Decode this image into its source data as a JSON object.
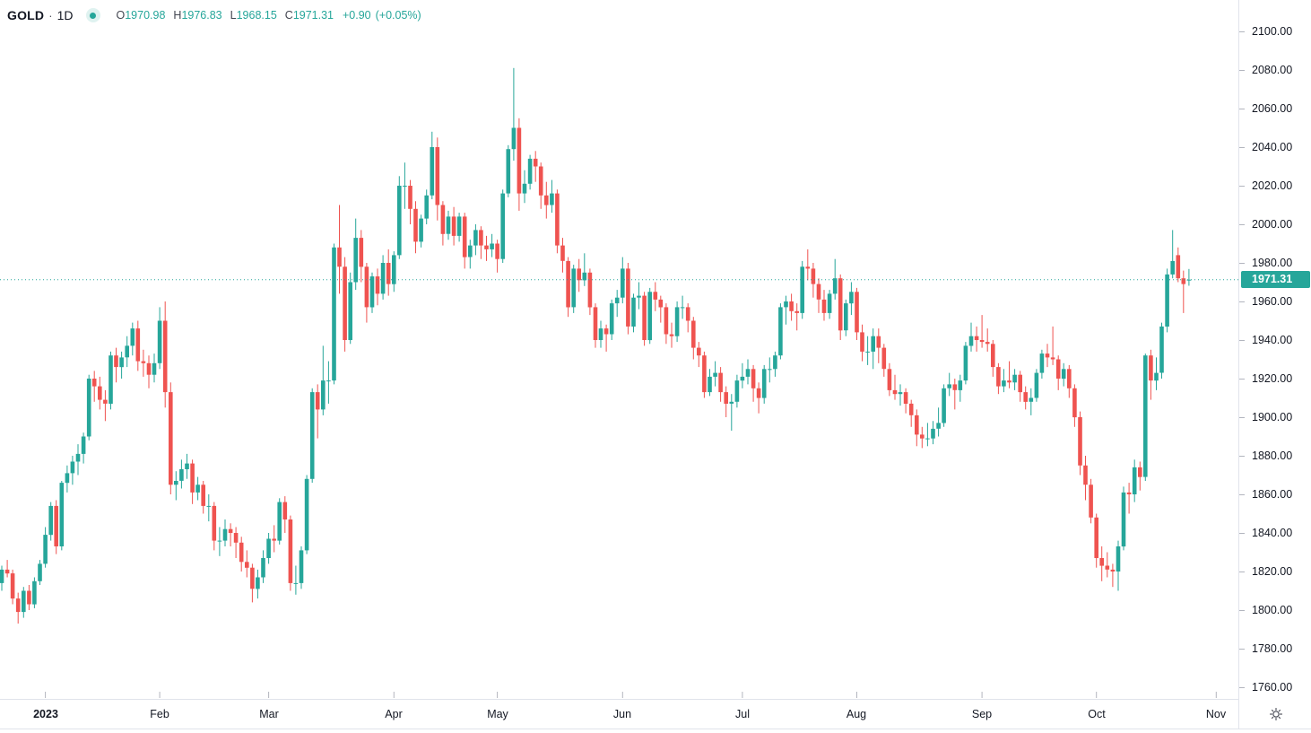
{
  "header": {
    "symbol": "GOLD",
    "separator": "·",
    "timeframe": "1D",
    "ohlc": {
      "o_label": "O",
      "o": "1970.98",
      "h_label": "H",
      "h": "1976.83",
      "l_label": "L",
      "l": "1968.15",
      "c_label": "C",
      "c": "1971.31",
      "change": "+0.90",
      "change_pct": "(+0.05%)"
    }
  },
  "colors": {
    "up": "#26a69a",
    "down": "#ef5350",
    "last_price_line": "#26a69a",
    "axis_text": "#131722",
    "border": "#e0e3eb",
    "tick": "#b2b5be"
  },
  "price_axis": {
    "ticks": [
      "2100.00",
      "2080.00",
      "2060.00",
      "2040.00",
      "2020.00",
      "2000.00",
      "1980.00",
      "1960.00",
      "1940.00",
      "1920.00",
      "1900.00",
      "1880.00",
      "1860.00",
      "1840.00",
      "1820.00",
      "1800.00",
      "1780.00",
      "1760.00"
    ],
    "last_price_label": "1971.31"
  },
  "corner": {
    "icon": "gear"
  },
  "chart_data": {
    "type": "candlestick",
    "symbol": "GOLD",
    "timeframe": "1D",
    "title": "GOLD · 1D",
    "grid": false,
    "legend_position": "top-left",
    "y_axis": {
      "min": 1760,
      "max": 2100,
      "step": 20
    },
    "x_axis": {
      "months": [
        {
          "label": "2023",
          "index": 8,
          "bold": true
        },
        {
          "label": "Feb",
          "index": 29
        },
        {
          "label": "Mar",
          "index": 49
        },
        {
          "label": "Apr",
          "index": 72
        },
        {
          "label": "May",
          "index": 91
        },
        {
          "label": "Jun",
          "index": 114
        },
        {
          "label": "Jul",
          "index": 136
        },
        {
          "label": "Aug",
          "index": 157
        },
        {
          "label": "Sep",
          "index": 180
        },
        {
          "label": "Oct",
          "index": 201
        },
        {
          "label": "Nov",
          "index": 223
        }
      ]
    },
    "last": {
      "open": 1970.98,
      "high": 1976.83,
      "low": 1968.15,
      "close": 1971.31,
      "change": "+0.90",
      "change_pct": "+0.05%"
    },
    "candles": [
      [
        1814,
        1823,
        1810,
        1821
      ],
      [
        1821,
        1826,
        1817,
        1819
      ],
      [
        1819,
        1821,
        1803,
        1806
      ],
      [
        1806,
        1809,
        1793,
        1799
      ],
      [
        1799,
        1812,
        1796,
        1810
      ],
      [
        1810,
        1813,
        1800,
        1803
      ],
      [
        1803,
        1817,
        1801,
        1815
      ],
      [
        1815,
        1826,
        1813,
        1824
      ],
      [
        1824,
        1843,
        1822,
        1839
      ],
      [
        1839,
        1856,
        1836,
        1854
      ],
      [
        1854,
        1857,
        1829,
        1833
      ],
      [
        1833,
        1867,
        1831,
        1866
      ],
      [
        1866,
        1875,
        1861,
        1871
      ],
      [
        1871,
        1880,
        1865,
        1877
      ],
      [
        1877,
        1886,
        1870,
        1881
      ],
      [
        1881,
        1892,
        1876,
        1890
      ],
      [
        1890,
        1922,
        1888,
        1920
      ],
      [
        1920,
        1924,
        1908,
        1916
      ],
      [
        1916,
        1921,
        1904,
        1909
      ],
      [
        1909,
        1914,
        1898,
        1907
      ],
      [
        1907,
        1934,
        1904,
        1932
      ],
      [
        1932,
        1936,
        1918,
        1926
      ],
      [
        1926,
        1934,
        1920,
        1931
      ],
      [
        1931,
        1942,
        1926,
        1937
      ],
      [
        1937,
        1949,
        1932,
        1946
      ],
      [
        1946,
        1950,
        1924,
        1929
      ],
      [
        1929,
        1935,
        1921,
        1928
      ],
      [
        1928,
        1932,
        1915,
        1922
      ],
      [
        1922,
        1933,
        1918,
        1928
      ],
      [
        1928,
        1957,
        1925,
        1950
      ],
      [
        1950,
        1960,
        1905,
        1913
      ],
      [
        1913,
        1918,
        1860,
        1865
      ],
      [
        1865,
        1872,
        1857,
        1867
      ],
      [
        1867,
        1878,
        1863,
        1873
      ],
      [
        1873,
        1881,
        1868,
        1876
      ],
      [
        1876,
        1878,
        1855,
        1861
      ],
      [
        1861,
        1869,
        1857,
        1865
      ],
      [
        1865,
        1867,
        1850,
        1854
      ],
      [
        1854,
        1860,
        1846,
        1854
      ],
      [
        1854,
        1856,
        1831,
        1836
      ],
      [
        1836,
        1843,
        1828,
        1836
      ],
      [
        1836,
        1847,
        1833,
        1842
      ],
      [
        1842,
        1845,
        1833,
        1840
      ],
      [
        1840,
        1843,
        1827,
        1835
      ],
      [
        1835,
        1838,
        1820,
        1825
      ],
      [
        1825,
        1831,
        1817,
        1822
      ],
      [
        1822,
        1824,
        1804,
        1811
      ],
      [
        1811,
        1821,
        1806,
        1817
      ],
      [
        1817,
        1831,
        1814,
        1827
      ],
      [
        1827,
        1840,
        1824,
        1837
      ],
      [
        1837,
        1844,
        1830,
        1836
      ],
      [
        1836,
        1858,
        1834,
        1856
      ],
      [
        1856,
        1859,
        1840,
        1847
      ],
      [
        1847,
        1849,
        1810,
        1814
      ],
      [
        1814,
        1823,
        1808,
        1814
      ],
      [
        1814,
        1833,
        1811,
        1831
      ],
      [
        1831,
        1870,
        1829,
        1868
      ],
      [
        1868,
        1915,
        1866,
        1913
      ],
      [
        1913,
        1917,
        1889,
        1904
      ],
      [
        1904,
        1937,
        1901,
        1919
      ],
      [
        1919,
        1929,
        1907,
        1919
      ],
      [
        1919,
        1990,
        1917,
        1988
      ],
      [
        1988,
        2010,
        1964,
        1978
      ],
      [
        1978,
        1983,
        1934,
        1940
      ],
      [
        1940,
        1975,
        1938,
        1970
      ],
      [
        1970,
        2003,
        1966,
        1993
      ],
      [
        1993,
        1997,
        1970,
        1978
      ],
      [
        1978,
        1980,
        1949,
        1957
      ],
      [
        1957,
        1975,
        1954,
        1973
      ],
      [
        1973,
        1977,
        1958,
        1964
      ],
      [
        1964,
        1984,
        1961,
        1980
      ],
      [
        1980,
        1987,
        1963,
        1969
      ],
      [
        1969,
        1986,
        1965,
        1984
      ],
      [
        1984,
        2025,
        1982,
        2020
      ],
      [
        2020,
        2032,
        2008,
        2020
      ],
      [
        2020,
        2023,
        2000,
        2008
      ],
      [
        2008,
        2012,
        1985,
        1991
      ],
      [
        1991,
        2005,
        1988,
        2003
      ],
      [
        2003,
        2018,
        2000,
        2015
      ],
      [
        2015,
        2048,
        2013,
        2040
      ],
      [
        2040,
        2045,
        2002,
        2010
      ],
      [
        2010,
        2012,
        1989,
        1995
      ],
      [
        1995,
        2007,
        1992,
        2004
      ],
      [
        2004,
        2009,
        1989,
        1994
      ],
      [
        1994,
        2006,
        1991,
        2004
      ],
      [
        2004,
        2006,
        1977,
        1983
      ],
      [
        1983,
        1992,
        1977,
        1989
      ],
      [
        1989,
        2000,
        1984,
        1997
      ],
      [
        1997,
        1999,
        1982,
        1989
      ],
      [
        1989,
        1994,
        1981,
        1987
      ],
      [
        1987,
        1995,
        1983,
        1990
      ],
      [
        1990,
        1992,
        1975,
        1982
      ],
      [
        1982,
        2018,
        1980,
        2016
      ],
      [
        2016,
        2041,
        2014,
        2039
      ],
      [
        2039,
        2081,
        2033,
        2050
      ],
      [
        2050,
        2055,
        2007,
        2016
      ],
      [
        2016,
        2028,
        2011,
        2021
      ],
      [
        2021,
        2036,
        2018,
        2034
      ],
      [
        2034,
        2038,
        2022,
        2030
      ],
      [
        2030,
        2032,
        2008,
        2015
      ],
      [
        2015,
        2022,
        2003,
        2010
      ],
      [
        2010,
        2023,
        2006,
        2016
      ],
      [
        2016,
        2018,
        1985,
        1989
      ],
      [
        1989,
        1993,
        1975,
        1981
      ],
      [
        1981,
        1983,
        1952,
        1957
      ],
      [
        1957,
        1979,
        1954,
        1977
      ],
      [
        1977,
        1982,
        1965,
        1971
      ],
      [
        1971,
        1985,
        1968,
        1975
      ],
      [
        1975,
        1977,
        1953,
        1957
      ],
      [
        1957,
        1959,
        1936,
        1940
      ],
      [
        1940,
        1950,
        1936,
        1946
      ],
      [
        1946,
        1948,
        1934,
        1943
      ],
      [
        1943,
        1961,
        1940,
        1959
      ],
      [
        1959,
        1966,
        1952,
        1962
      ],
      [
        1962,
        1983,
        1959,
        1977
      ],
      [
        1977,
        1980,
        1943,
        1947
      ],
      [
        1947,
        1964,
        1944,
        1962
      ],
      [
        1962,
        1970,
        1956,
        1963
      ],
      [
        1963,
        1965,
        1937,
        1940
      ],
      [
        1940,
        1967,
        1938,
        1965
      ],
      [
        1965,
        1970,
        1955,
        1961
      ],
      [
        1961,
        1963,
        1949,
        1957
      ],
      [
        1957,
        1959,
        1938,
        1943
      ],
      [
        1943,
        1949,
        1936,
        1942
      ],
      [
        1942,
        1960,
        1939,
        1957
      ],
      [
        1957,
        1963,
        1951,
        1957
      ],
      [
        1957,
        1959,
        1944,
        1950
      ],
      [
        1950,
        1952,
        1930,
        1936
      ],
      [
        1936,
        1939,
        1926,
        1932
      ],
      [
        1932,
        1934,
        1910,
        1913
      ],
      [
        1913,
        1925,
        1911,
        1921
      ],
      [
        1921,
        1929,
        1916,
        1923
      ],
      [
        1923,
        1926,
        1908,
        1913
      ],
      [
        1913,
        1916,
        1900,
        1907
      ],
      [
        1907,
        1912,
        1893,
        1908
      ],
      [
        1908,
        1922,
        1905,
        1919
      ],
      [
        1919,
        1928,
        1915,
        1921
      ],
      [
        1921,
        1930,
        1917,
        1925
      ],
      [
        1925,
        1927,
        1908,
        1915
      ],
      [
        1915,
        1918,
        1902,
        1910
      ],
      [
        1910,
        1927,
        1907,
        1925
      ],
      [
        1925,
        1931,
        1918,
        1925
      ],
      [
        1925,
        1934,
        1921,
        1932
      ],
      [
        1932,
        1959,
        1930,
        1957
      ],
      [
        1957,
        1963,
        1948,
        1960
      ],
      [
        1960,
        1964,
        1950,
        1955
      ],
      [
        1955,
        1959,
        1945,
        1954
      ],
      [
        1954,
        1981,
        1951,
        1978
      ],
      [
        1978,
        1987,
        1971,
        1977
      ],
      [
        1977,
        1980,
        1962,
        1969
      ],
      [
        1969,
        1972,
        1954,
        1961
      ],
      [
        1961,
        1966,
        1950,
        1954
      ],
      [
        1954,
        1966,
        1951,
        1964
      ],
      [
        1964,
        1982,
        1961,
        1972
      ],
      [
        1972,
        1974,
        1940,
        1945
      ],
      [
        1945,
        1961,
        1942,
        1959
      ],
      [
        1959,
        1970,
        1953,
        1965
      ],
      [
        1965,
        1967,
        1940,
        1944
      ],
      [
        1944,
        1948,
        1929,
        1934
      ],
      [
        1934,
        1942,
        1927,
        1934
      ],
      [
        1934,
        1946,
        1925,
        1942
      ],
      [
        1942,
        1946,
        1928,
        1936
      ],
      [
        1936,
        1938,
        1921,
        1925
      ],
      [
        1925,
        1928,
        1911,
        1914
      ],
      [
        1914,
        1922,
        1909,
        1912
      ],
      [
        1912,
        1917,
        1906,
        1913
      ],
      [
        1913,
        1915,
        1902,
        1907
      ],
      [
        1907,
        1909,
        1895,
        1901
      ],
      [
        1901,
        1904,
        1885,
        1891
      ],
      [
        1891,
        1895,
        1884,
        1889
      ],
      [
        1889,
        1897,
        1885,
        1889
      ],
      [
        1889,
        1898,
        1886,
        1894
      ],
      [
        1894,
        1905,
        1890,
        1897
      ],
      [
        1897,
        1917,
        1895,
        1915
      ],
      [
        1915,
        1923,
        1911,
        1917
      ],
      [
        1917,
        1920,
        1904,
        1914
      ],
      [
        1914,
        1922,
        1908,
        1919
      ],
      [
        1919,
        1939,
        1917,
        1937
      ],
      [
        1937,
        1949,
        1934,
        1942
      ],
      [
        1942,
        1947,
        1934,
        1940
      ],
      [
        1940,
        1953,
        1936,
        1939
      ],
      [
        1939,
        1946,
        1934,
        1938
      ],
      [
        1938,
        1940,
        1921,
        1926
      ],
      [
        1926,
        1928,
        1912,
        1916
      ],
      [
        1916,
        1925,
        1913,
        1919
      ],
      [
        1919,
        1929,
        1915,
        1918
      ],
      [
        1918,
        1925,
        1914,
        1922
      ],
      [
        1922,
        1924,
        1908,
        1913
      ],
      [
        1913,
        1916,
        1904,
        1908
      ],
      [
        1908,
        1915,
        1901,
        1910
      ],
      [
        1910,
        1925,
        1908,
        1923
      ],
      [
        1923,
        1935,
        1920,
        1933
      ],
      [
        1933,
        1938,
        1926,
        1931
      ],
      [
        1931,
        1947,
        1927,
        1930
      ],
      [
        1930,
        1932,
        1914,
        1920
      ],
      [
        1920,
        1928,
        1916,
        1925
      ],
      [
        1925,
        1927,
        1910,
        1915
      ],
      [
        1915,
        1917,
        1895,
        1900
      ],
      [
        1900,
        1903,
        1870,
        1875
      ],
      [
        1875,
        1880,
        1857,
        1865
      ],
      [
        1865,
        1868,
        1845,
        1848
      ],
      [
        1848,
        1850,
        1822,
        1827
      ],
      [
        1827,
        1833,
        1815,
        1823
      ],
      [
        1823,
        1830,
        1817,
        1821
      ],
      [
        1821,
        1824,
        1812,
        1820
      ],
      [
        1820,
        1836,
        1810,
        1833
      ],
      [
        1833,
        1864,
        1831,
        1861
      ],
      [
        1861,
        1866,
        1850,
        1860
      ],
      [
        1860,
        1878,
        1856,
        1874
      ],
      [
        1874,
        1877,
        1862,
        1869
      ],
      [
        1869,
        1933,
        1867,
        1932
      ],
      [
        1932,
        1935,
        1909,
        1919
      ],
      [
        1919,
        1931,
        1914,
        1923
      ],
      [
        1923,
        1949,
        1920,
        1947
      ],
      [
        1947,
        1977,
        1944,
        1974
      ],
      [
        1974,
        1997,
        1972,
        1981
      ],
      [
        1984,
        1988,
        1970,
        1972
      ],
      [
        1972,
        1976,
        1954,
        1969
      ],
      [
        1970.98,
        1976.83,
        1968.15,
        1971.31
      ]
    ]
  }
}
